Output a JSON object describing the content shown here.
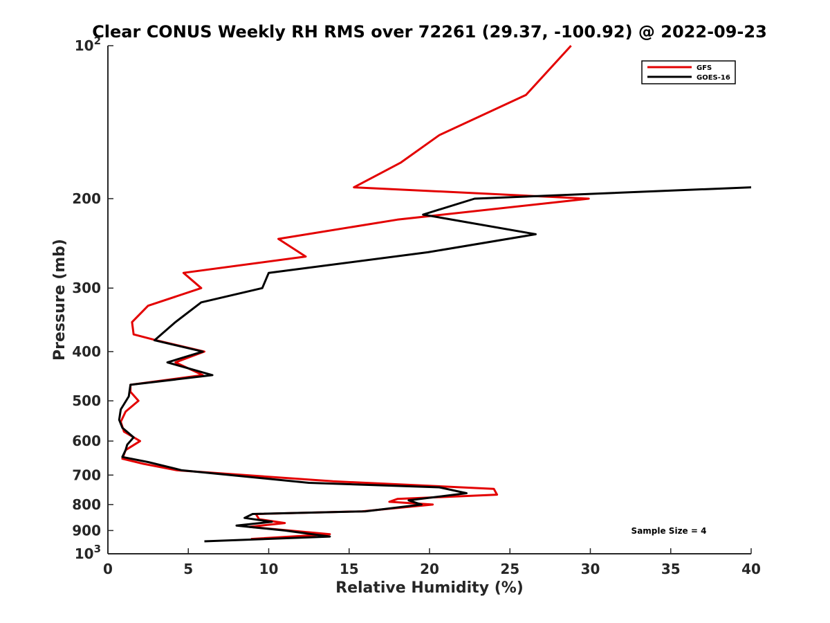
{
  "chart_data": {
    "type": "line",
    "title": "Clear CONUS Weekly RH RMS over 72261 (29.37, -100.92) @ 2022-09-23",
    "xlabel": "Relative Humidity (%)",
    "ylabel": "Pressure (mb)",
    "xlim": [
      0,
      40
    ],
    "ylim": [
      100,
      1000
    ],
    "y_scale": "log",
    "y_reversed": true,
    "grid": false,
    "legend_position": "top-right",
    "x_ticks": [
      0,
      5,
      10,
      15,
      20,
      25,
      30,
      35,
      40
    ],
    "y_ticks": [
      {
        "value": 100,
        "base": "10",
        "exp": "2"
      },
      {
        "value": 200,
        "label": "200"
      },
      {
        "value": 300,
        "label": "300"
      },
      {
        "value": 400,
        "label": "400"
      },
      {
        "value": 500,
        "label": "500"
      },
      {
        "value": 600,
        "label": "600"
      },
      {
        "value": 700,
        "label": "700"
      },
      {
        "value": 800,
        "label": "800"
      },
      {
        "value": 900,
        "label": "900"
      },
      {
        "value": 1000,
        "base": "10",
        "exp": "3"
      }
    ],
    "annotation": "Sample Size = 4",
    "series": [
      {
        "name": "GFS",
        "color": "#e30000",
        "points": [
          [
            28.8,
            100
          ],
          [
            26.0,
            125
          ],
          [
            20.6,
            150
          ],
          [
            18.2,
            170
          ],
          [
            15.3,
            190
          ],
          [
            29.9,
            200
          ],
          [
            18.0,
            220
          ],
          [
            10.6,
            240
          ],
          [
            12.3,
            260
          ],
          [
            4.7,
            280
          ],
          [
            5.8,
            300
          ],
          [
            2.5,
            325
          ],
          [
            1.5,
            350
          ],
          [
            1.6,
            370
          ],
          [
            3.0,
            380
          ],
          [
            6.0,
            400
          ],
          [
            4.2,
            420
          ],
          [
            5.9,
            445
          ],
          [
            1.4,
            465
          ],
          [
            1.4,
            480
          ],
          [
            1.9,
            500
          ],
          [
            1.1,
            525
          ],
          [
            0.8,
            550
          ],
          [
            1.0,
            575
          ],
          [
            2.0,
            600
          ],
          [
            1.1,
            625
          ],
          [
            0.9,
            650
          ],
          [
            2.2,
            665
          ],
          [
            4.3,
            685
          ],
          [
            14.0,
            720
          ],
          [
            24.0,
            745
          ],
          [
            24.2,
            765
          ],
          [
            18.0,
            780
          ],
          [
            17.5,
            790
          ],
          [
            20.2,
            800
          ],
          [
            15.8,
            825
          ],
          [
            9.2,
            835
          ],
          [
            9.4,
            855
          ],
          [
            11.0,
            870
          ],
          [
            8.8,
            885
          ],
          [
            13.8,
            915
          ],
          [
            8.9,
            935
          ]
        ]
      },
      {
        "name": "GOES-16",
        "color": "#000000",
        "points": [
          [
            40.0,
            190
          ],
          [
            22.8,
            200
          ],
          [
            19.6,
            215
          ],
          [
            26.6,
            235
          ],
          [
            19.9,
            255
          ],
          [
            10.0,
            280
          ],
          [
            9.6,
            300
          ],
          [
            5.8,
            320
          ],
          [
            4.2,
            350
          ],
          [
            2.9,
            380
          ],
          [
            5.9,
            400
          ],
          [
            3.7,
            420
          ],
          [
            6.5,
            445
          ],
          [
            1.4,
            465
          ],
          [
            1.3,
            490
          ],
          [
            0.8,
            520
          ],
          [
            0.7,
            545
          ],
          [
            0.9,
            565
          ],
          [
            1.6,
            590
          ],
          [
            1.2,
            610
          ],
          [
            1.1,
            625
          ],
          [
            0.9,
            645
          ],
          [
            2.5,
            660
          ],
          [
            4.6,
            685
          ],
          [
            12.5,
            725
          ],
          [
            20.6,
            740
          ],
          [
            22.3,
            760
          ],
          [
            18.7,
            785
          ],
          [
            19.5,
            800
          ],
          [
            16.0,
            825
          ],
          [
            9.0,
            835
          ],
          [
            8.5,
            850
          ],
          [
            10.2,
            865
          ],
          [
            8.0,
            880
          ],
          [
            11.0,
            900
          ],
          [
            13.8,
            925
          ],
          [
            6.0,
            945
          ]
        ]
      }
    ]
  }
}
